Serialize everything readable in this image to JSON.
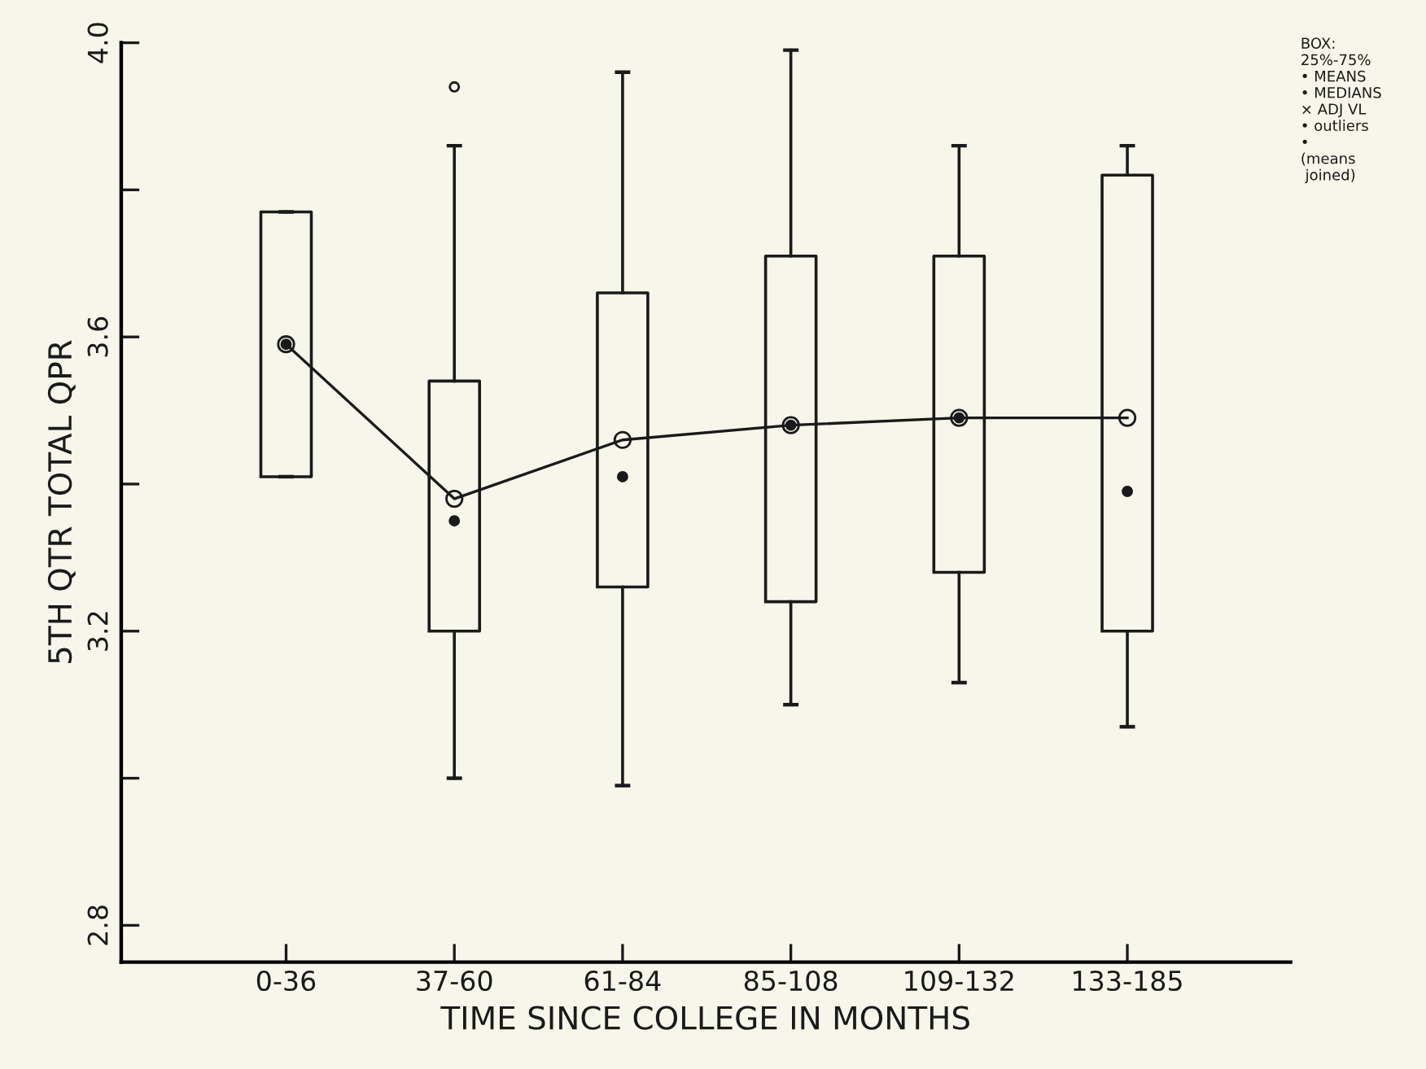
{
  "chart_data": {
    "type": "box",
    "xlabel": "TIME SINCE COLLEGE IN MONTHS",
    "ylabel": "5TH QTR TOTAL QPR",
    "categories": [
      "0-36",
      "37-60",
      "61-84",
      "85-108",
      "109-132",
      "133-185"
    ],
    "boxes": [
      {
        "low": 3.41,
        "q1": 3.41,
        "median": 3.59,
        "q3": 3.77,
        "high": 3.77
      },
      {
        "low": 3.0,
        "q1": 3.2,
        "median": 3.35,
        "q3": 3.54,
        "high": 3.86,
        "outliers": [
          3.94
        ]
      },
      {
        "low": 2.99,
        "q1": 3.26,
        "median": 3.41,
        "q3": 3.66,
        "high": 3.96
      },
      {
        "low": 3.1,
        "q1": 3.24,
        "median": 3.48,
        "q3": 3.71,
        "high": 3.99
      },
      {
        "low": 3.13,
        "q1": 3.28,
        "median": 3.49,
        "q3": 3.71,
        "high": 3.86
      },
      {
        "low": 3.07,
        "q1": 3.2,
        "median": 3.39,
        "q3": 3.82,
        "high": 3.86
      }
    ],
    "series": [
      {
        "type": "line",
        "color": "#1a1a1a",
        "marker": "circle",
        "values": [
          3.59,
          3.38,
          3.46,
          3.48,
          3.49,
          3.49
        ]
      }
    ],
    "ylim": [
      2.75,
      4.0
    ],
    "yticks": [
      {
        "value": 2.8,
        "label": "2.8"
      },
      {
        "value": 3.0,
        "label": null
      },
      {
        "value": 3.2,
        "label": "3.2"
      },
      {
        "value": 3.4,
        "label": null
      },
      {
        "value": 3.6,
        "label": "3.6"
      },
      {
        "value": 3.8,
        "label": null
      },
      {
        "value": 4.0,
        "label": "4.0"
      }
    ],
    "annotations": [
      "BOX:\n25%-75%\n• MEANS\n• MEDIANS\n× ADJ VL\n• outliers\n•\n(means\n joined)"
    ],
    "grid": false,
    "legend": false
  }
}
